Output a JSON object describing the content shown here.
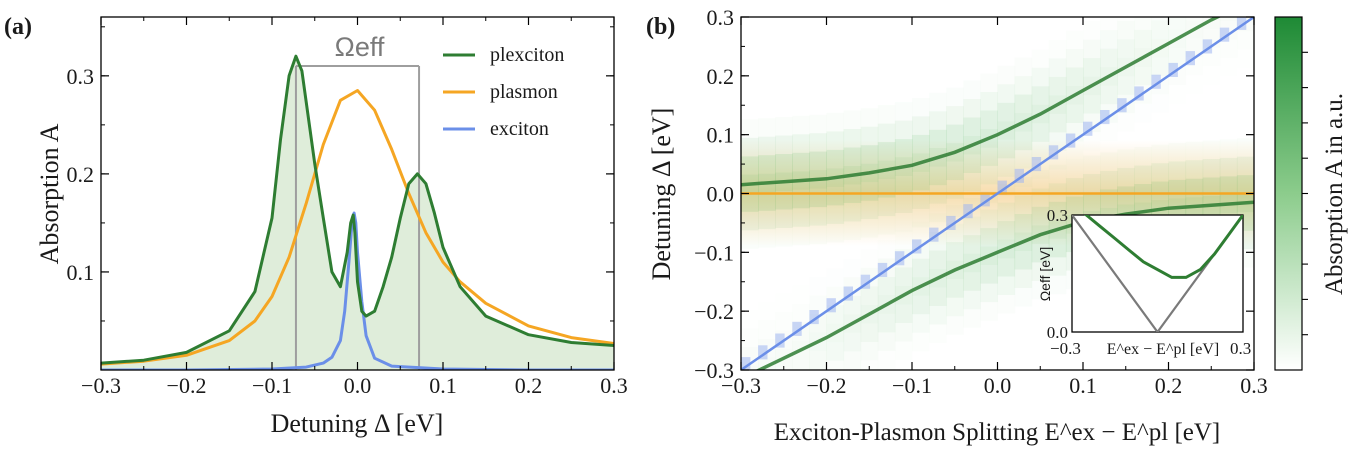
{
  "panel_labels": {
    "a": "(a)",
    "b": "(b)"
  },
  "colors": {
    "plexciton": "#2e7d32",
    "plasmon": "#f5a623",
    "exciton": "#6b8fe8",
    "fill": "#d9ead3",
    "guide": "#9e9e9e",
    "inset_diag": "#7a7a7a"
  },
  "chart_data": [
    {
      "id": "a",
      "type": "line",
      "xlabel": "Detuning Δ [eV]",
      "ylabel": "Absorption A",
      "xlim": [
        -0.3,
        0.3
      ],
      "ylim": [
        0.0,
        0.36
      ],
      "xticks": [
        -0.3,
        -0.2,
        -0.1,
        0.0,
        0.1,
        0.2,
        0.3
      ],
      "xtick_labels": [
        "−0.3",
        "−0.2",
        "−0.1",
        "0.0",
        "0.1",
        "0.2",
        "0.3"
      ],
      "yticks": [
        0.1,
        0.2,
        0.3
      ],
      "ytick_labels": [
        "0.1",
        "0.2",
        "0.3"
      ],
      "annotation": "Ωeff",
      "omega_eff_edges": [
        -0.072,
        0.072
      ],
      "legend": {
        "position": "top-right",
        "entries": [
          "plexciton",
          "plasmon",
          "exciton"
        ]
      },
      "series": [
        {
          "name": "plexciton",
          "x": [
            -0.3,
            -0.25,
            -0.2,
            -0.15,
            -0.12,
            -0.1,
            -0.09,
            -0.08,
            -0.072,
            -0.065,
            -0.05,
            -0.04,
            -0.03,
            -0.02,
            -0.012,
            -0.008,
            -0.005,
            -0.003,
            0.0,
            0.005,
            0.01,
            0.02,
            0.03,
            0.04,
            0.05,
            0.06,
            0.07,
            0.08,
            0.09,
            0.1,
            0.12,
            0.15,
            0.2,
            0.25,
            0.3
          ],
          "y": [
            0.007,
            0.01,
            0.018,
            0.04,
            0.08,
            0.155,
            0.235,
            0.3,
            0.32,
            0.305,
            0.21,
            0.155,
            0.1,
            0.085,
            0.12,
            0.15,
            0.158,
            0.14,
            0.09,
            0.06,
            0.055,
            0.06,
            0.085,
            0.115,
            0.155,
            0.19,
            0.2,
            0.19,
            0.16,
            0.125,
            0.085,
            0.055,
            0.036,
            0.028,
            0.025
          ]
        },
        {
          "name": "plasmon",
          "x": [
            -0.3,
            -0.25,
            -0.2,
            -0.15,
            -0.12,
            -0.1,
            -0.08,
            -0.06,
            -0.04,
            -0.02,
            0.0,
            0.02,
            0.04,
            0.06,
            0.08,
            0.1,
            0.12,
            0.15,
            0.2,
            0.25,
            0.3
          ],
          "y": [
            0.006,
            0.009,
            0.015,
            0.03,
            0.05,
            0.075,
            0.115,
            0.17,
            0.23,
            0.275,
            0.285,
            0.265,
            0.225,
            0.18,
            0.14,
            0.11,
            0.09,
            0.068,
            0.045,
            0.033,
            0.027
          ]
        },
        {
          "name": "exciton",
          "x": [
            -0.3,
            -0.2,
            -0.1,
            -0.06,
            -0.04,
            -0.03,
            -0.02,
            -0.015,
            -0.01,
            -0.006,
            -0.004,
            -0.002,
            0.0,
            0.005,
            0.01,
            0.02,
            0.04,
            0.1,
            0.2,
            0.3
          ],
          "y": [
            0.0,
            0.0,
            0.001,
            0.003,
            0.007,
            0.013,
            0.03,
            0.06,
            0.11,
            0.155,
            0.16,
            0.15,
            0.12,
            0.07,
            0.035,
            0.012,
            0.004,
            0.001,
            0.0,
            0.0
          ]
        }
      ]
    },
    {
      "id": "b",
      "type": "heatmap",
      "xlabel": "Exciton-Plasmon Splitting E^ex − E^pl [eV]",
      "ylabel": "Detuning Δ [eV]",
      "xlim": [
        -0.3,
        0.3
      ],
      "ylim": [
        -0.3,
        0.3
      ],
      "xticks": [
        -0.3,
        -0.2,
        -0.1,
        0.0,
        0.1,
        0.2,
        0.3
      ],
      "xtick_labels": [
        "−0.3",
        "−0.2",
        "−0.1",
        "0.0",
        "0.1",
        "0.2",
        "0.3"
      ],
      "yticks": [
        -0.3,
        -0.2,
        -0.1,
        0.0,
        0.1,
        0.2,
        0.3
      ],
      "ytick_labels": [
        "−0.3",
        "−0.2",
        "−0.1",
        "0.0",
        "0.1",
        "0.2",
        "0.3"
      ],
      "colorbar_label": "Absorption A in a.u.",
      "colorbar_ticks": 9,
      "heatmap_columns": 30,
      "series": [
        {
          "name": "plasmon",
          "x": [
            -0.3,
            0.3
          ],
          "y": [
            0.0,
            0.0
          ]
        },
        {
          "name": "exciton",
          "x": [
            -0.3,
            0.3
          ],
          "y": [
            -0.3,
            0.3
          ]
        },
        {
          "name": "upper plexciton",
          "x": [
            -0.3,
            -0.25,
            -0.2,
            -0.15,
            -0.1,
            -0.05,
            0.0,
            0.05,
            0.1,
            0.15,
            0.2,
            0.25,
            0.3
          ],
          "y": [
            0.015,
            0.02,
            0.025,
            0.035,
            0.048,
            0.07,
            0.1,
            0.135,
            0.175,
            0.215,
            0.255,
            0.295,
            0.33
          ]
        },
        {
          "name": "lower plexciton",
          "x": [
            -0.3,
            -0.25,
            -0.2,
            -0.15,
            -0.1,
            -0.05,
            0.0,
            0.05,
            0.1,
            0.15,
            0.2,
            0.25,
            0.3
          ],
          "y": [
            -0.315,
            -0.28,
            -0.245,
            -0.205,
            -0.165,
            -0.13,
            -0.1,
            -0.07,
            -0.048,
            -0.035,
            -0.025,
            -0.02,
            -0.015
          ]
        }
      ],
      "inset": {
        "xlabel": "E^ex − E^pl [eV]",
        "ylabel": "Ωeff [eV]",
        "xlim": [
          -0.3,
          0.3
        ],
        "ylim": [
          0.0,
          0.3
        ],
        "xtick_labels": [
          "−0.3",
          "0.3"
        ],
        "ytick_labels": [
          "0.0",
          "0.3"
        ],
        "series": [
          {
            "name": "plexciton",
            "x": [
              -0.3,
              -0.25,
              -0.2,
              -0.15,
              -0.1,
              -0.05,
              0.0,
              0.05,
              0.1,
              0.15,
              0.2,
              0.25,
              0.3
            ],
            "y": [
              0.33,
              0.3,
              0.27,
              0.24,
              0.21,
              0.18,
              0.16,
              0.14,
              0.14,
              0.16,
              0.2,
              0.25,
              0.3
            ]
          },
          {
            "name": "|E^ex − E^pl|",
            "x": [
              -0.3,
              0.0,
              0.3
            ],
            "y": [
              0.3,
              0.0,
              0.3
            ]
          }
        ]
      }
    }
  ]
}
